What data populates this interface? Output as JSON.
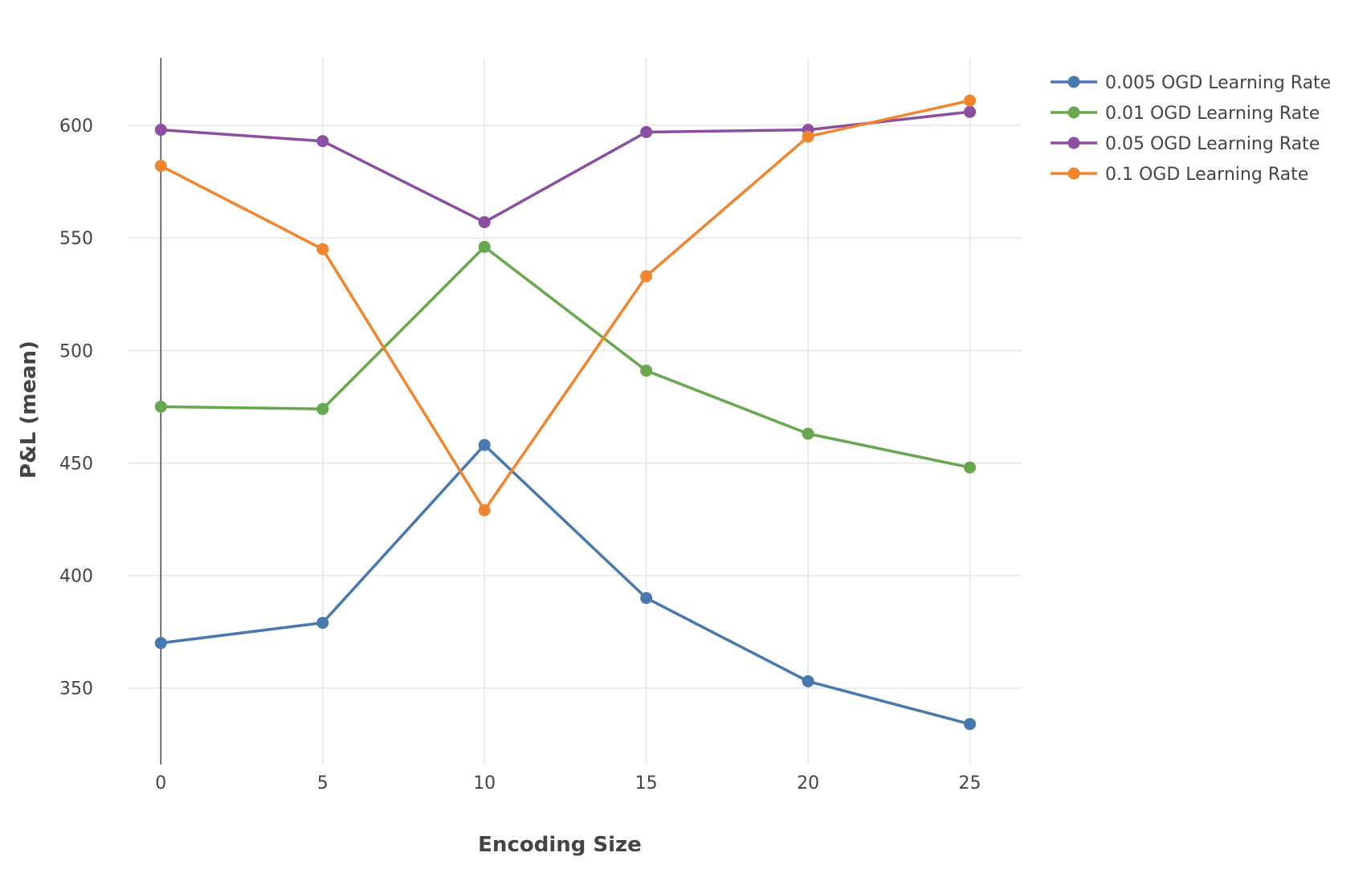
{
  "chart_data": {
    "type": "line",
    "xlabel": "Encoding Size",
    "ylabel": "P&L (mean)",
    "xlim": [
      -1,
      26.6
    ],
    "ylim": [
      316,
      630
    ],
    "x_ticks": [
      0,
      5,
      10,
      15,
      20,
      25
    ],
    "y_ticks": [
      350,
      400,
      450,
      500,
      550,
      600
    ],
    "grid": true,
    "legend_position": "top-right",
    "x": [
      0,
      5,
      10,
      15,
      20,
      25
    ],
    "series": [
      {
        "name": "0.005 OGD Learning Rate",
        "color": "#4878b0",
        "values": [
          370,
          379,
          458,
          390,
          353,
          334
        ]
      },
      {
        "name": "0.01 OGD Learning Rate",
        "color": "#67a84e",
        "values": [
          475,
          474,
          546,
          491,
          463,
          448
        ]
      },
      {
        "name": "0.05 OGD Learning Rate",
        "color": "#8b4ea0",
        "values": [
          598,
          593,
          557,
          597,
          598,
          606
        ]
      },
      {
        "name": "0.1 OGD Learning Rate",
        "color": "#f0852e",
        "values": [
          582,
          545,
          429,
          533,
          595,
          611
        ]
      }
    ]
  }
}
